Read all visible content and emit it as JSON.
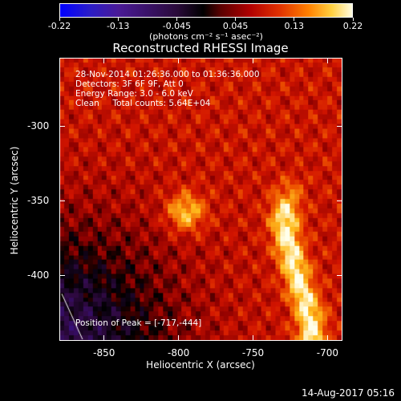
{
  "colorbar": {
    "ticks": [
      "-0.22",
      "-0.13",
      "-0.045",
      "0.045",
      "0.13",
      "0.22"
    ],
    "unit": "(photons cm⁻² s⁻¹ asec⁻²)"
  },
  "info": {
    "time_range": "28-Nov-2014 01:26:36.000 to 01:36:36.000",
    "detectors": "Detectors: 3F 6F 9F, Att 0",
    "energy": "Energy Range: 3.0 - 6.0 keV",
    "clean": "Clean     Total counts: 5.64E+04",
    "peak": "Position of Peak = [-717,-444]"
  },
  "footer": {
    "timestamp": "14-Aug-2017 05:16"
  },
  "chart_data": {
    "type": "heatmap",
    "title": "Reconstructed RHESSI Image",
    "xlabel": "Heliocentric X (arcsec)",
    "ylabel": "Heliocentric Y (arcsec)",
    "xlim": [
      -880,
      -690
    ],
    "ylim": [
      -444,
      -254
    ],
    "xticks": [
      -850,
      -800,
      -750,
      -700
    ],
    "yticks": [
      -300,
      -350,
      -400
    ],
    "xtick_labels": [
      "-850",
      "-800",
      "-750",
      "-700"
    ],
    "ytick_labels": [
      "-300",
      "-350",
      "-400"
    ],
    "colorscale": {
      "min": -0.22,
      "max": 0.22
    },
    "features": [
      {
        "label": "compact source",
        "x": -795,
        "y": -358,
        "value": 0.18
      },
      {
        "label": "elongated bright ridge",
        "x": -720,
        "y": -385,
        "value": 0.22
      }
    ],
    "peak": [
      -717,
      -444
    ]
  }
}
